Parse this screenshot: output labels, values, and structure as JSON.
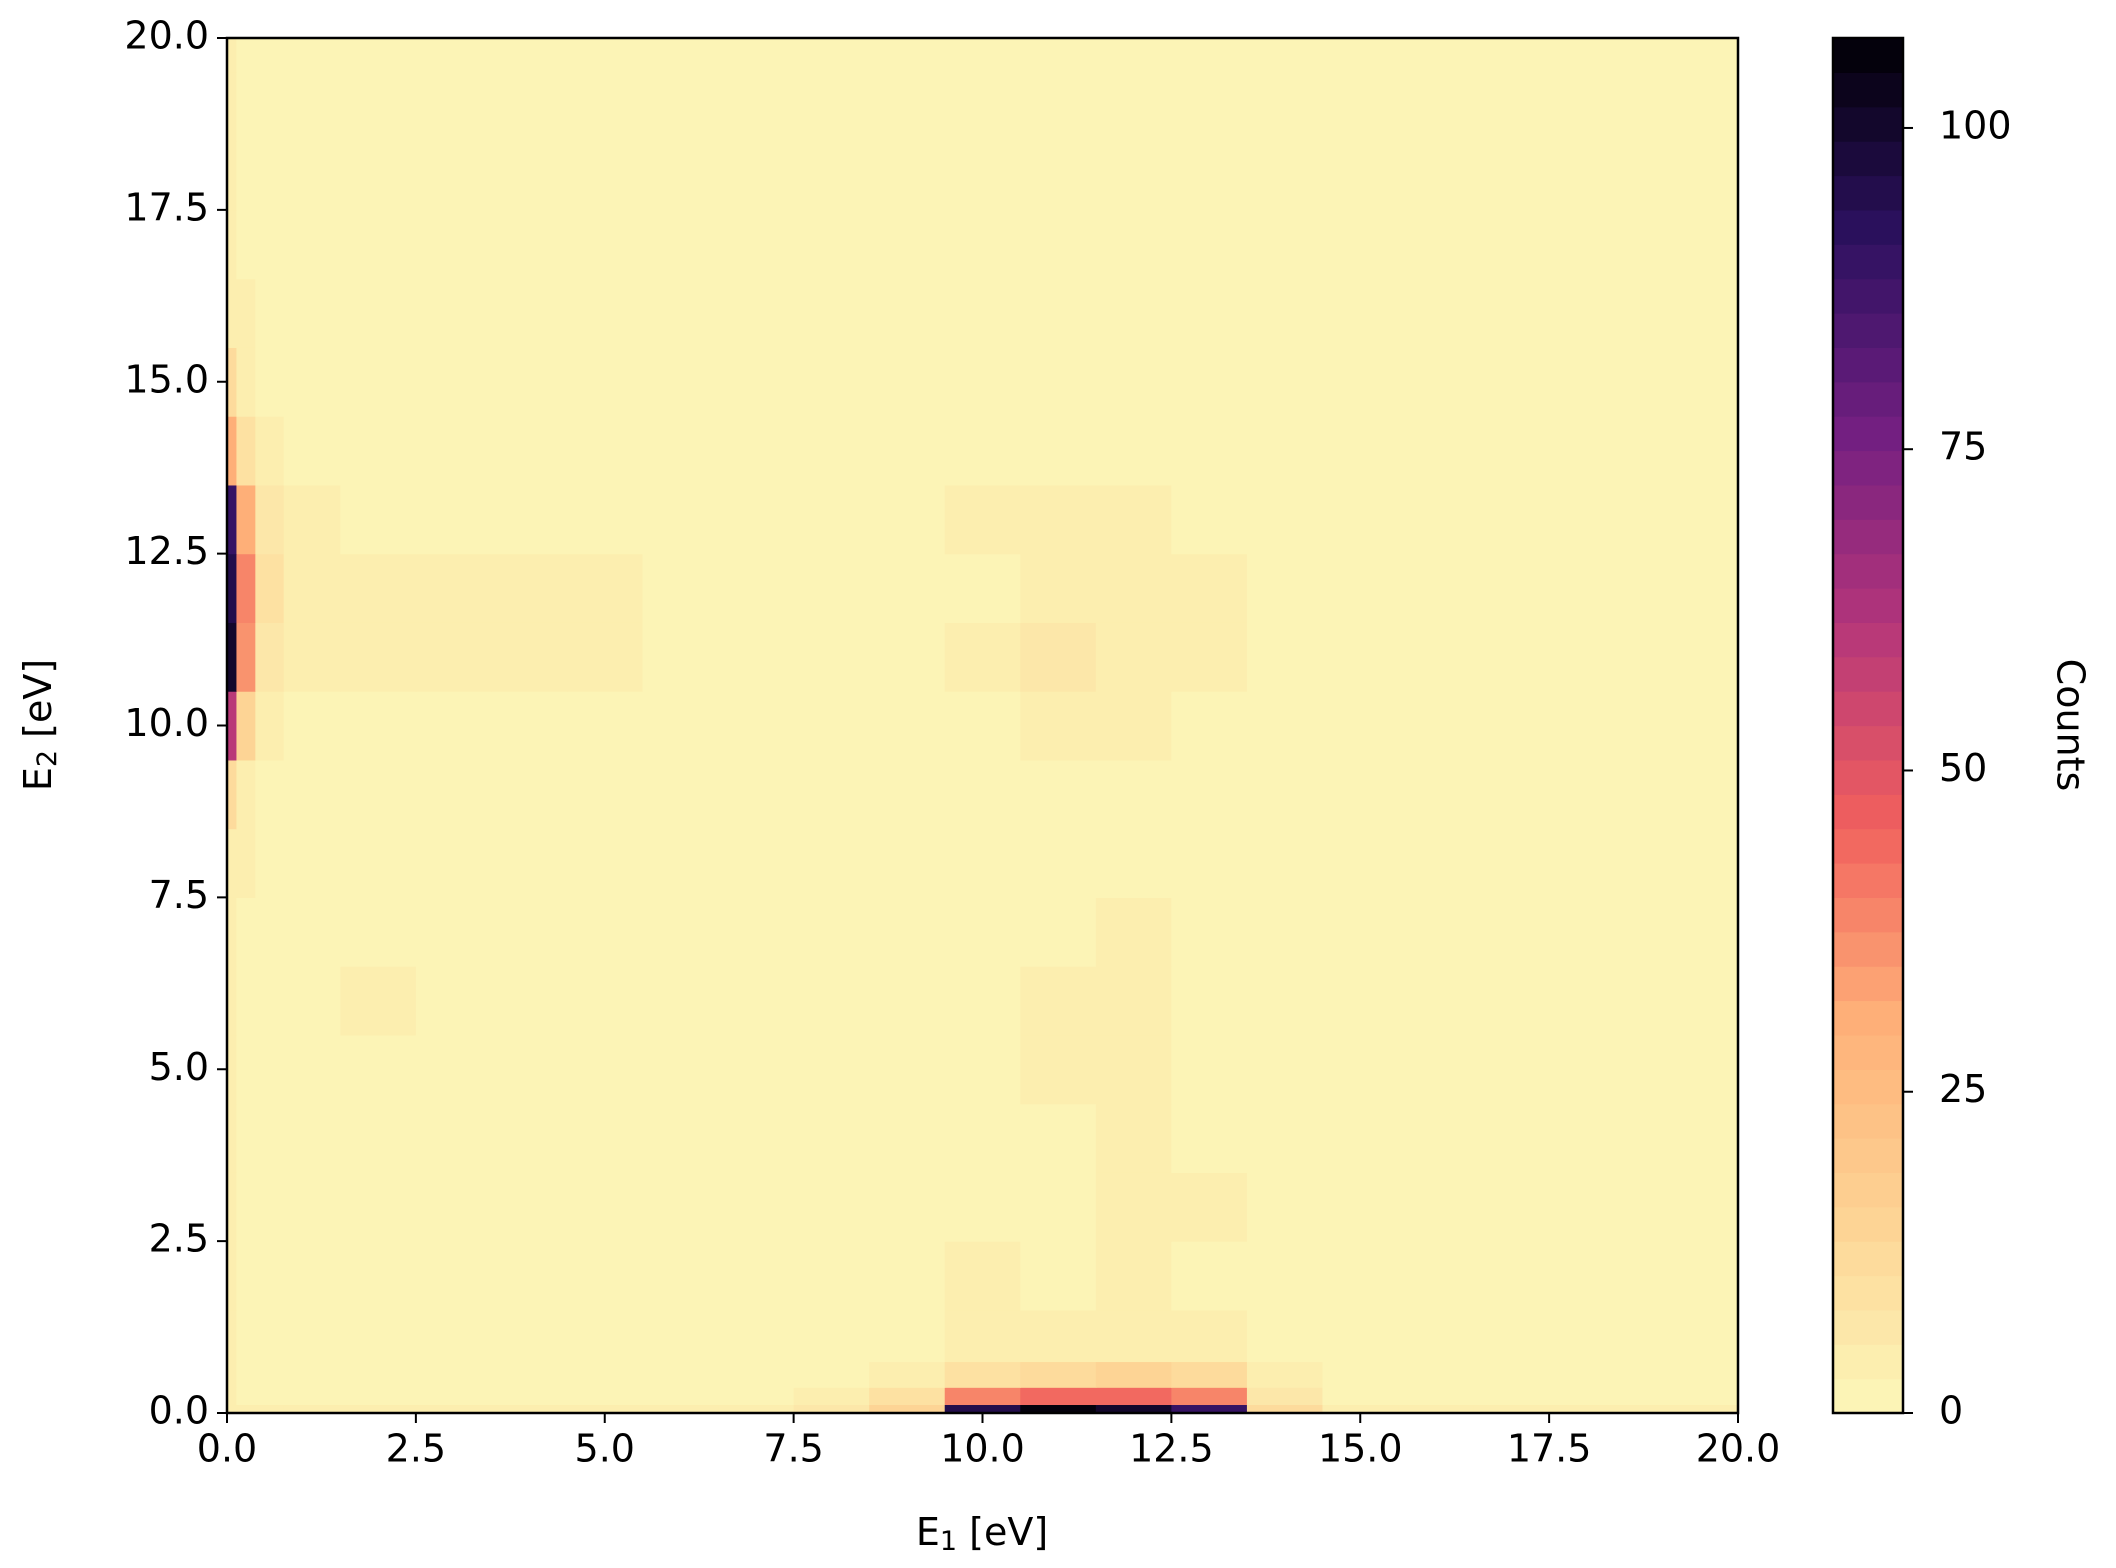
{
  "chart_data": {
    "type": "contour",
    "xlabel": [
      "E",
      "1",
      " [eV]"
    ],
    "ylabel": [
      "E",
      "2",
      " [eV]"
    ],
    "colorbar_label": "Counts",
    "colormap": [
      "#fcf7b9",
      "#fdd394",
      "#feb078",
      "#f1605d",
      "#b5367a",
      "#721f81",
      "#2c115f",
      "#000004"
    ],
    "x": [
      0,
      0.25,
      0.5,
      1,
      2,
      3,
      4,
      5,
      6,
      7,
      8,
      9,
      10,
      11,
      12,
      13,
      14,
      15,
      16,
      17,
      18,
      19,
      20
    ],
    "y": [
      0,
      0.25,
      0.5,
      1,
      2,
      3,
      4,
      5,
      6,
      7,
      8,
      9,
      10,
      11,
      12,
      13,
      14,
      15,
      16,
      17,
      18,
      19,
      20
    ],
    "z": [
      [
        4,
        3,
        3,
        3,
        4,
        4,
        4,
        4,
        4,
        4,
        6,
        15,
        95,
        105,
        100,
        90,
        12,
        4,
        4,
        4,
        3,
        3,
        3
      ],
      [
        3,
        2,
        2,
        2,
        2,
        2,
        2,
        2,
        2,
        2,
        4,
        10,
        40,
        45,
        45,
        40,
        6,
        2,
        2,
        2,
        2,
        2,
        2
      ],
      [
        3,
        2,
        2,
        1,
        1,
        1,
        1,
        1,
        1,
        1,
        2,
        4,
        10,
        12,
        14,
        12,
        3,
        1,
        1,
        1,
        1,
        1,
        1
      ],
      [
        3,
        2,
        1,
        1,
        1,
        1,
        1,
        1,
        1,
        1,
        1,
        1,
        3,
        4,
        5,
        4,
        1,
        1,
        1,
        1,
        1,
        1,
        1
      ],
      [
        3,
        2,
        1,
        1,
        1,
        1,
        1,
        1,
        1,
        1,
        1,
        1,
        3,
        2,
        3,
        2,
        1,
        1,
        1,
        1,
        1,
        1,
        1
      ],
      [
        3,
        2,
        1,
        1,
        1,
        1,
        1,
        1,
        1,
        1,
        1,
        1,
        2,
        2,
        4,
        4,
        1,
        1,
        1,
        1,
        1,
        1,
        1
      ],
      [
        3,
        2,
        1,
        1,
        1,
        1,
        1,
        1,
        1,
        1,
        1,
        1,
        1,
        1,
        3,
        2,
        1,
        1,
        1,
        1,
        1,
        1,
        1
      ],
      [
        3,
        2,
        1,
        1,
        1,
        1,
        1,
        1,
        1,
        1,
        1,
        1,
        2,
        3,
        3,
        2,
        1,
        1,
        1,
        1,
        1,
        1,
        1
      ],
      [
        3,
        2,
        1,
        1,
        3,
        1,
        1,
        1,
        1,
        1,
        1,
        1,
        2,
        3,
        3,
        1,
        1,
        1,
        1,
        1,
        1,
        1,
        1
      ],
      [
        4,
        2,
        1,
        1,
        1,
        1,
        1,
        1,
        1,
        1,
        1,
        1,
        1,
        2,
        3,
        2,
        1,
        1,
        1,
        1,
        1,
        1,
        1
      ],
      [
        5,
        3,
        1,
        1,
        1,
        1,
        1,
        1,
        1,
        1,
        1,
        1,
        1,
        2,
        2,
        1,
        1,
        1,
        1,
        1,
        1,
        1,
        1
      ],
      [
        12,
        4,
        2,
        1,
        1,
        1,
        1,
        1,
        1,
        1,
        1,
        1,
        1,
        2,
        2,
        2,
        1,
        1,
        1,
        1,
        1,
        1,
        1
      ],
      [
        60,
        15,
        4,
        2,
        2,
        1,
        1,
        1,
        1,
        1,
        1,
        1,
        2,
        3,
        3,
        2,
        1,
        1,
        1,
        1,
        1,
        1,
        1
      ],
      [
        100,
        35,
        8,
        3,
        3,
        3,
        3,
        3,
        1,
        2,
        1,
        1,
        3,
        6,
        3,
        3,
        1,
        1,
        1,
        1,
        1,
        1,
        1
      ],
      [
        95,
        40,
        9,
        3,
        3,
        3,
        3,
        3,
        1,
        1,
        1,
        1,
        2,
        3,
        5,
        3,
        1,
        1,
        1,
        1,
        1,
        1,
        1
      ],
      [
        90,
        30,
        6,
        3,
        2,
        2,
        1,
        1,
        1,
        1,
        1,
        1,
        3,
        4,
        3,
        2,
        1,
        1,
        1,
        1,
        1,
        1,
        1
      ],
      [
        30,
        10,
        4,
        1,
        1,
        1,
        1,
        1,
        1,
        1,
        1,
        1,
        1,
        1,
        1,
        2,
        1,
        1,
        1,
        1,
        1,
        1,
        1
      ],
      [
        12,
        4,
        2,
        1,
        1,
        1,
        1,
        1,
        1,
        1,
        1,
        1,
        1,
        1,
        1,
        2,
        1,
        1,
        1,
        1,
        1,
        1,
        1
      ],
      [
        5,
        3,
        1,
        1,
        1,
        1,
        1,
        1,
        1,
        1,
        1,
        1,
        1,
        1,
        1,
        1,
        1,
        1,
        1,
        1,
        1,
        1,
        1
      ],
      [
        3,
        2,
        1,
        1,
        1,
        1,
        1,
        1,
        1,
        1,
        1,
        1,
        1,
        1,
        1,
        1,
        1,
        1,
        1,
        1,
        1,
        1,
        1
      ],
      [
        3,
        2,
        1,
        1,
        1,
        1,
        1,
        1,
        1,
        1,
        1,
        1,
        1,
        1,
        1,
        1,
        1,
        1,
        1,
        1,
        1,
        1,
        1
      ],
      [
        3,
        2,
        1,
        1,
        1,
        1,
        1,
        1,
        1,
        1,
        1,
        1,
        1,
        1,
        1,
        1,
        1,
        1,
        1,
        1,
        1,
        1,
        1
      ],
      [
        3,
        2,
        1,
        1,
        1,
        1,
        1,
        1,
        1,
        1,
        1,
        1,
        1,
        1,
        1,
        1,
        1,
        1,
        1,
        1,
        1,
        1,
        1
      ]
    ],
    "xlim": [
      0,
      20
    ],
    "ylim": [
      0,
      20
    ],
    "zlim": [
      0,
      107
    ],
    "xticks": [
      {
        "value": 0,
        "label": "0.0"
      },
      {
        "value": 2.5,
        "label": "2.5"
      },
      {
        "value": 5,
        "label": "5.0"
      },
      {
        "value": 7.5,
        "label": "7.5"
      },
      {
        "value": 10,
        "label": "10.0"
      },
      {
        "value": 12.5,
        "label": "12.5"
      },
      {
        "value": 15,
        "label": "15.0"
      },
      {
        "value": 17.5,
        "label": "17.5"
      },
      {
        "value": 20,
        "label": "20.0"
      }
    ],
    "yticks": [
      {
        "value": 0,
        "label": "0.0"
      },
      {
        "value": 2.5,
        "label": "2.5"
      },
      {
        "value": 5,
        "label": "5.0"
      },
      {
        "value": 7.5,
        "label": "7.5"
      },
      {
        "value": 10,
        "label": "10.0"
      },
      {
        "value": 12.5,
        "label": "12.5"
      },
      {
        "value": 15,
        "label": "15.0"
      },
      {
        "value": 17.5,
        "label": "17.5"
      },
      {
        "value": 20,
        "label": "20.0"
      }
    ],
    "zticks": [
      0,
      25,
      50,
      75,
      100
    ],
    "levels": 40
  }
}
